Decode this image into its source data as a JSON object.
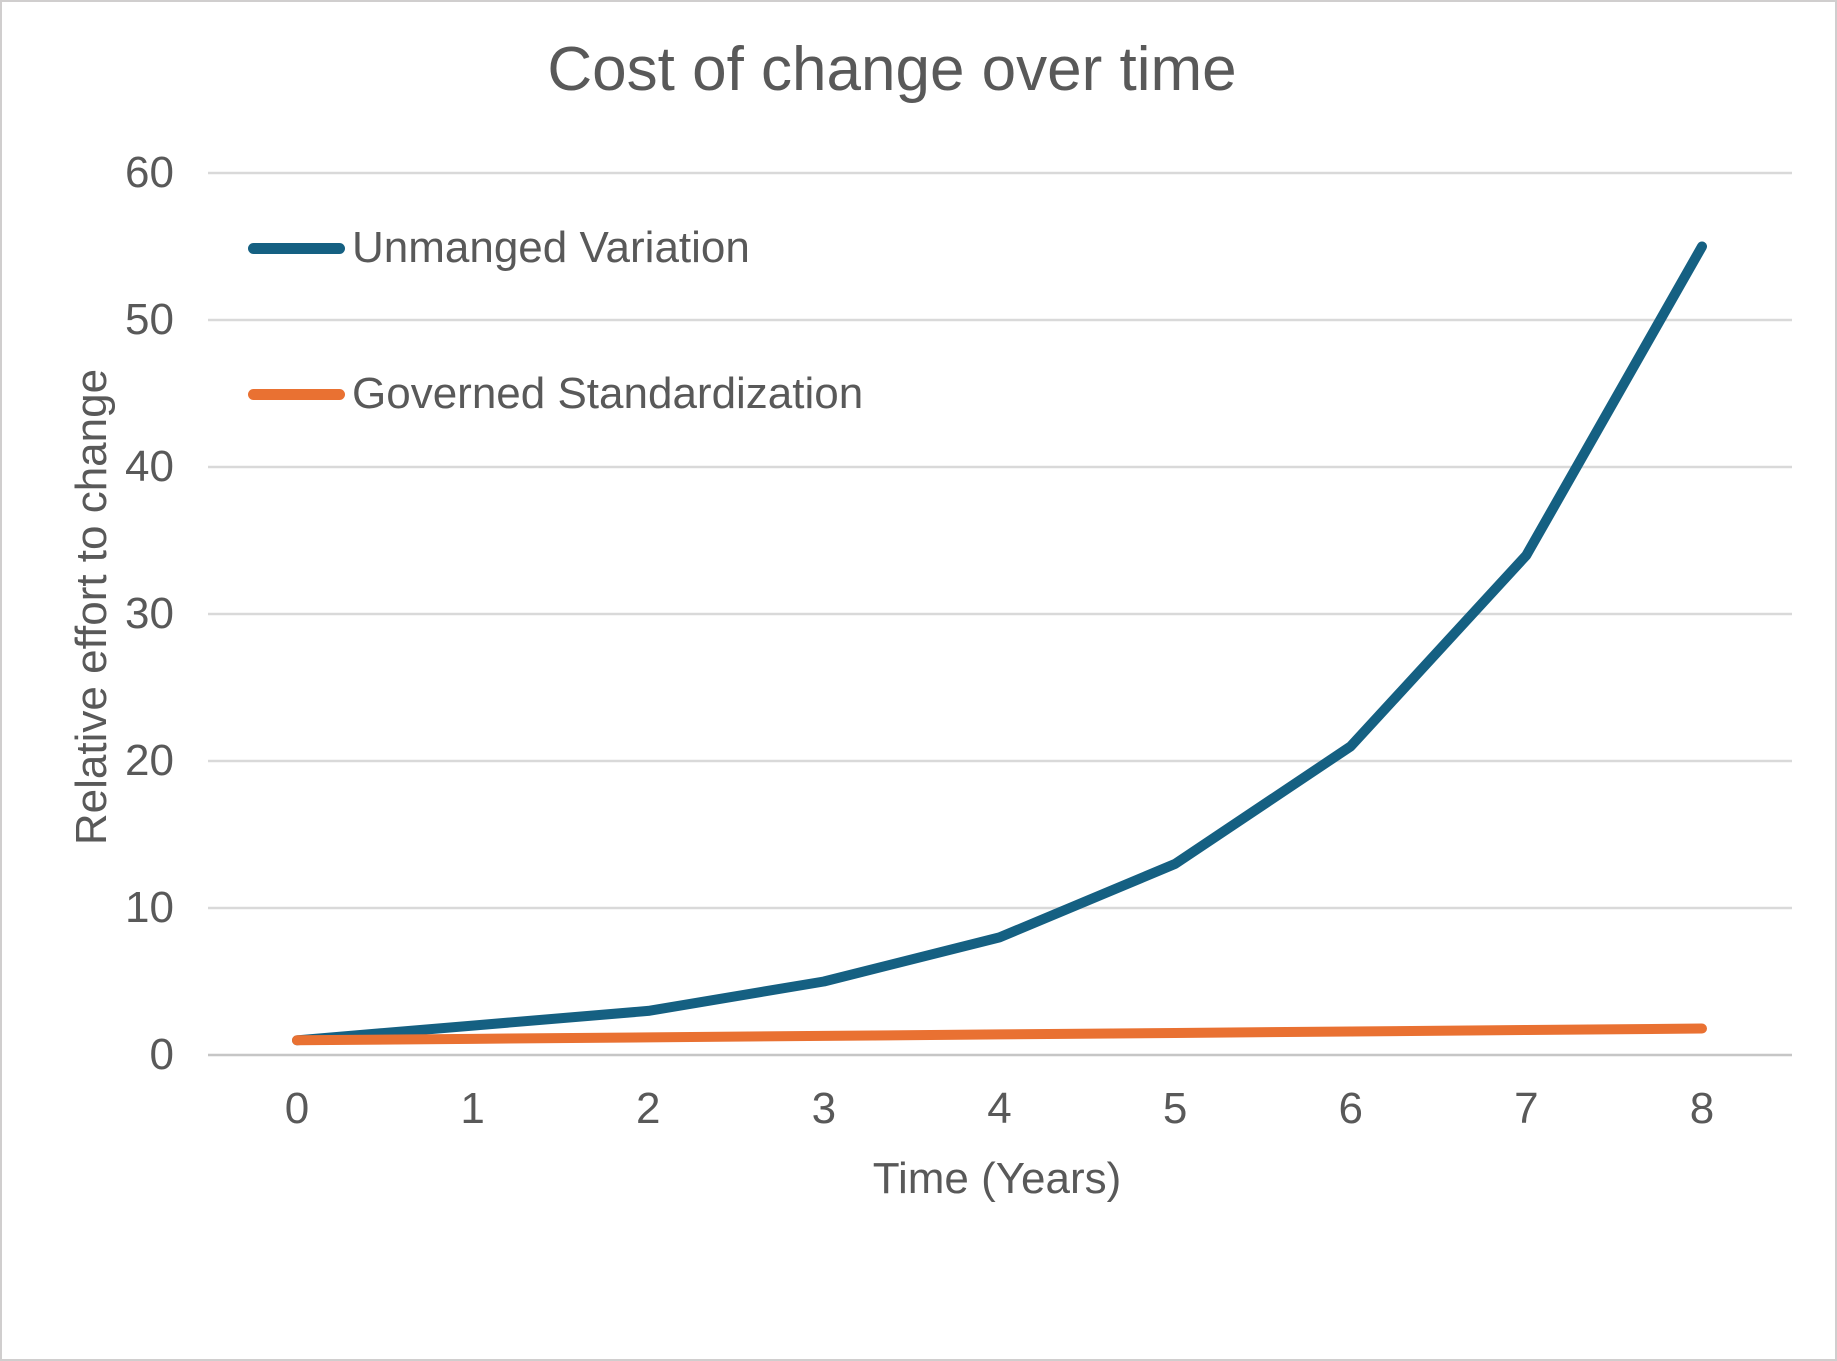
{
  "chart_data": {
    "type": "line",
    "title": "Cost of change over time",
    "xlabel": "Time (Years)",
    "ylabel": "Relative effort to change",
    "x": [
      0,
      1,
      2,
      3,
      4,
      5,
      6,
      7,
      8
    ],
    "series": [
      {
        "name": "Unmanged Variation",
        "color": "#156082",
        "values": [
          1,
          2,
          3,
          5,
          8,
          13,
          21,
          34,
          55
        ]
      },
      {
        "name": "Governed Standardization",
        "color": "#E97132",
        "values": [
          1,
          1.1,
          1.2,
          1.3,
          1.4,
          1.5,
          1.6,
          1.7,
          1.8
        ]
      }
    ],
    "ylim": [
      0,
      60
    ],
    "yticks": [
      0,
      10,
      20,
      30,
      40,
      50,
      60
    ],
    "grid": true,
    "legend_position": "upper-left"
  },
  "colors": {
    "text": "#595959",
    "gridline": "#d9d9d9",
    "axis_line": "#c6c6c6",
    "background": "#ffffff",
    "frame_border": "#d0cece"
  }
}
